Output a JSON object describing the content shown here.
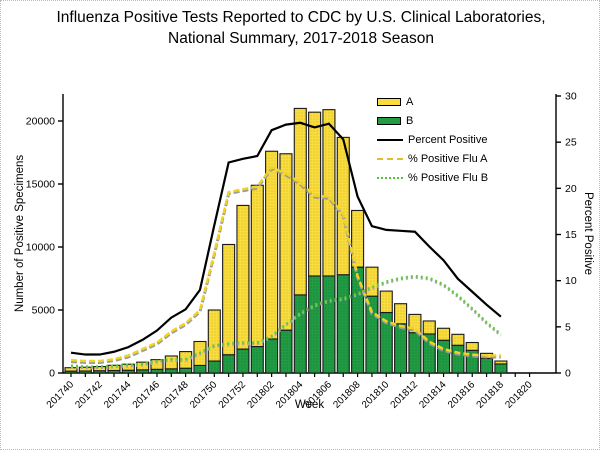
{
  "title": {
    "line1": "Influenza Positive Tests Reported to CDC by U.S. Clinical Laboratories,",
    "line2": "National Summary, 2017-2018 Season"
  },
  "legend": {
    "position": "top-right-inside-plot"
  },
  "chart_data": {
    "type": "bar+line",
    "title": "Influenza Positive Tests Reported to CDC by U.S. Clinical Laboratories, National Summary, 2017-2018 Season",
    "xlabel": "Week",
    "left_axis": {
      "label": "Number of Positive Specimens",
      "min": 0,
      "max": 22000,
      "ticks": [
        0,
        5000,
        10000,
        15000,
        20000
      ]
    },
    "right_axis": {
      "label": "Percent Positive",
      "min": 0,
      "max": 30,
      "ticks": [
        0,
        5,
        10,
        15,
        20,
        25,
        30
      ]
    },
    "x_tick_label_every": 2,
    "grid": false,
    "categories": [
      "201740",
      "201741",
      "201742",
      "201743",
      "201744",
      "201745",
      "201746",
      "201747",
      "201748",
      "201749",
      "201750",
      "201751",
      "201752",
      "201801",
      "201802",
      "201803",
      "201804",
      "201805",
      "201806",
      "201807",
      "201808",
      "201809",
      "201810",
      "201811",
      "201812",
      "201813",
      "201814",
      "201815",
      "201816",
      "201817",
      "201818",
      "201819",
      "201820"
    ],
    "series": [
      {
        "name": "A",
        "type": "bar",
        "stack": "positives",
        "color": "#f9dc3d",
        "values": [
          270,
          300,
          330,
          410,
          480,
          610,
          770,
          1020,
          1320,
          1900,
          4050,
          8750,
          11400,
          12800,
          14900,
          14000,
          14800,
          13000,
          13200,
          10900,
          4500,
          2300,
          1700,
          1600,
          1450,
          1030,
          950,
          870,
          620,
          400,
          230,
          null,
          null
        ]
      },
      {
        "name": "B",
        "type": "bar",
        "stack": "positives",
        "color": "#219c44",
        "values": [
          150,
          160,
          180,
          200,
          220,
          250,
          290,
          330,
          380,
          600,
          950,
          1450,
          1900,
          2100,
          2700,
          3400,
          6200,
          7700,
          7700,
          7800,
          8400,
          6100,
          4800,
          3900,
          3200,
          3100,
          2600,
          2200,
          1800,
          1160,
          720,
          null,
          null
        ]
      },
      {
        "name": "Percent Positive",
        "type": "line",
        "axis": "right",
        "color": "#000000",
        "style": "solid",
        "values": [
          2.2,
          2.0,
          2.0,
          2.3,
          2.8,
          3.6,
          4.6,
          6.0,
          6.9,
          9.0,
          16.0,
          22.8,
          23.2,
          23.5,
          26.3,
          26.9,
          27.1,
          26.6,
          27.0,
          25.3,
          19.1,
          15.9,
          15.5,
          15.4,
          15.3,
          13.7,
          12.2,
          10.2,
          8.8,
          7.4,
          6.1,
          null,
          null
        ]
      },
      {
        "name": "% Positive Flu A",
        "type": "line",
        "axis": "right",
        "color": "#e0c024",
        "style": "dashed",
        "values": [
          1.4,
          1.3,
          1.3,
          1.5,
          1.9,
          2.6,
          3.3,
          4.5,
          5.4,
          6.8,
          13.0,
          19.6,
          19.9,
          20.2,
          22.3,
          21.6,
          20.6,
          19.2,
          19.1,
          17.2,
          10.5,
          6.6,
          5.6,
          5.1,
          4.8,
          3.4,
          2.6,
          2.2,
          2.0,
          1.9,
          1.9,
          null,
          null
        ]
      },
      {
        "name": "% Positive Flu B",
        "type": "line",
        "axis": "right",
        "color": "#55c43c",
        "style": "dotted",
        "values": [
          0.8,
          0.7,
          0.7,
          0.8,
          0.9,
          1.0,
          1.3,
          1.5,
          1.5,
          2.2,
          3.0,
          3.2,
          3.3,
          3.3,
          4.0,
          5.3,
          6.5,
          7.4,
          7.9,
          8.1,
          8.6,
          9.3,
          9.9,
          10.3,
          10.5,
          10.3,
          9.6,
          8.4,
          7.0,
          5.5,
          4.2,
          null,
          null
        ]
      }
    ]
  }
}
